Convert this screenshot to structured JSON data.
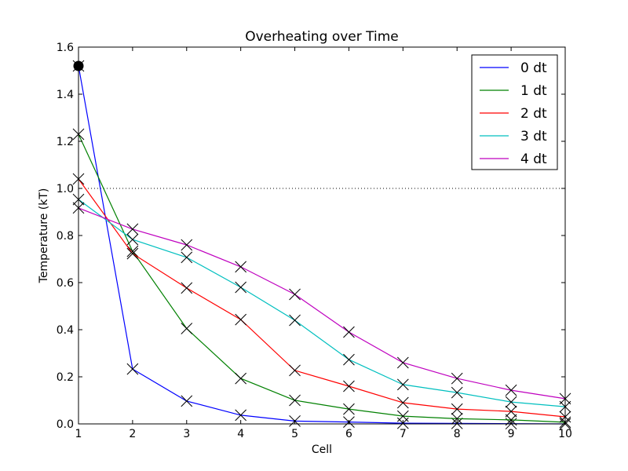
{
  "chart_data": {
    "type": "line",
    "title": "Overheating over Time",
    "xlabel": "Cell",
    "ylabel": "Temperature (kT)",
    "xlim": [
      1,
      10
    ],
    "ylim": [
      0,
      1.6
    ],
    "xticks": [
      1,
      2,
      3,
      4,
      5,
      6,
      7,
      8,
      9,
      10
    ],
    "yticks": [
      0.0,
      0.2,
      0.4,
      0.6,
      0.8,
      1.0,
      1.2,
      1.4,
      1.6
    ],
    "ytick_labels": [
      "0.0",
      "0.2",
      "0.4",
      "0.6",
      "0.8",
      "1.0",
      "1.2",
      "1.4",
      "1.6"
    ],
    "reference_line": {
      "y": 1.0,
      "style": "dotted",
      "color": "#000000"
    },
    "grid": false,
    "legend_position": "top-right",
    "markers": "x",
    "highlight_point": {
      "x": 1,
      "y": 1.52,
      "style": "filled-circle",
      "color": "#000000"
    },
    "x": [
      1,
      2,
      3,
      4,
      5,
      6,
      7,
      8,
      9,
      10
    ],
    "series": [
      {
        "name": "0 dt",
        "color": "#0000ff",
        "values": [
          1.52,
          0.233,
          0.097,
          0.037,
          0.012,
          0.008,
          0.003,
          0.002,
          0.001,
          0.0
        ]
      },
      {
        "name": "1 dt",
        "color": "#008000",
        "values": [
          1.23,
          0.733,
          0.405,
          0.193,
          0.1,
          0.063,
          0.033,
          0.022,
          0.017,
          0.007
        ]
      },
      {
        "name": "2 dt",
        "color": "#ff0000",
        "values": [
          1.04,
          0.723,
          0.577,
          0.443,
          0.227,
          0.16,
          0.09,
          0.063,
          0.053,
          0.03
        ]
      },
      {
        "name": "3 dt",
        "color": "#00bfbf",
        "values": [
          0.953,
          0.783,
          0.707,
          0.58,
          0.44,
          0.273,
          0.167,
          0.133,
          0.093,
          0.073
        ]
      },
      {
        "name": "4 dt",
        "color": "#bf00bf",
        "values": [
          0.917,
          0.827,
          0.76,
          0.667,
          0.55,
          0.39,
          0.26,
          0.193,
          0.143,
          0.107
        ]
      }
    ]
  }
}
